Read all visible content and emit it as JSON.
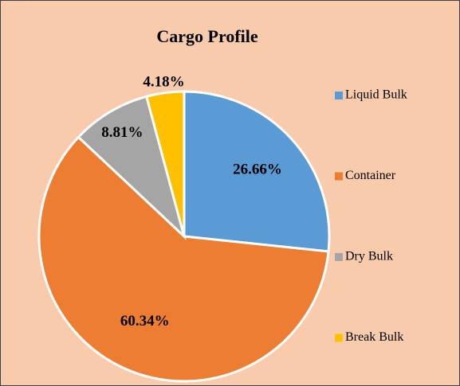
{
  "chart_data": {
    "type": "pie",
    "title": "Cargo Profile",
    "categories": [
      "Liquid Bulk",
      "Container",
      "Dry Bulk",
      "Break Bulk"
    ],
    "values": [
      26.66,
      60.34,
      8.81,
      4.18
    ],
    "value_labels": [
      "26.66%",
      "60.34%",
      "8.81%",
      "4.18%"
    ],
    "colors": [
      "#5b9bd5",
      "#ed7d31",
      "#a5a5a5",
      "#ffc000"
    ],
    "legend": "right"
  }
}
